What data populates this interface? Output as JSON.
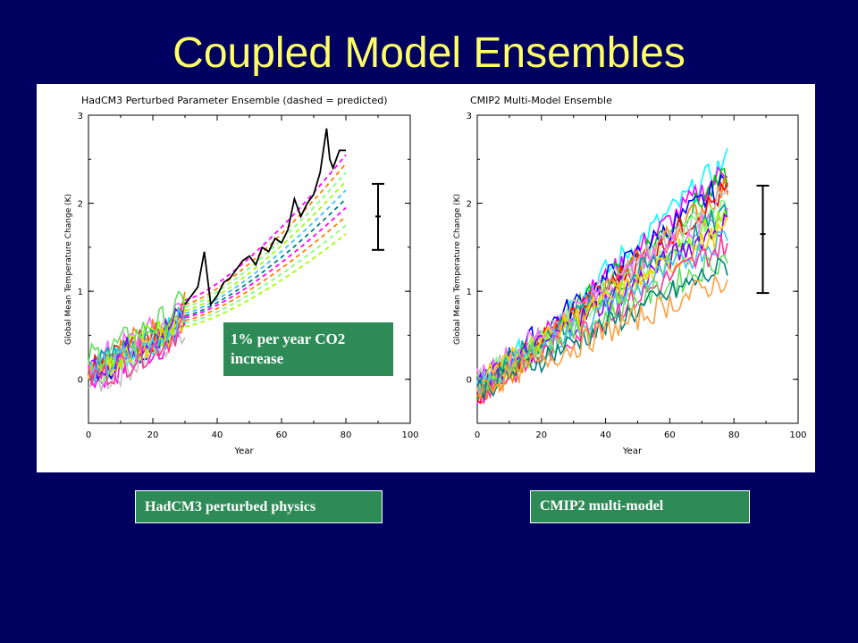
{
  "slide": {
    "title": "Coupled Model Ensembles",
    "callout": "1% per year CO2 increase",
    "caption_left": "HadCM3 perturbed physics",
    "caption_right": "CMIP2 multi-model",
    "text_color": "#ffff66",
    "background": "#000060",
    "box_color": "#2e8b57"
  },
  "chart_data": [
    {
      "type": "line",
      "title": "HadCM3 Perturbed Parameter Ensemble (dashed = predicted)",
      "xlabel": "Year",
      "ylabel": "Global Mean Temperature Change (K)",
      "xlim": [
        0,
        100
      ],
      "ylim": [
        -0.5,
        3.0
      ],
      "xticks": [
        0,
        20,
        40,
        60,
        80,
        100
      ],
      "yticks": [
        0,
        1,
        2,
        3
      ],
      "observed_ensemble": {
        "note": "~16 coloured noisy simulations for years 0-30",
        "x": [
          0,
          5,
          10,
          15,
          20,
          25,
          30
        ],
        "mean": [
          0.1,
          0.15,
          0.25,
          0.35,
          0.45,
          0.55,
          0.75
        ],
        "spread": [
          0.25,
          0.25,
          0.25,
          0.3,
          0.3,
          0.35,
          0.35
        ]
      },
      "black_run": {
        "x": [
          30,
          32,
          34,
          36,
          38,
          40,
          42,
          44,
          46,
          48,
          50,
          52,
          54,
          56,
          58,
          60,
          62,
          64,
          66,
          68,
          70,
          72,
          74,
          75,
          76,
          78,
          80
        ],
        "y": [
          0.85,
          0.95,
          1.05,
          1.45,
          0.85,
          0.95,
          1.1,
          1.15,
          1.25,
          1.35,
          1.4,
          1.3,
          1.5,
          1.45,
          1.6,
          1.55,
          1.7,
          2.05,
          1.85,
          2.0,
          2.1,
          2.35,
          2.85,
          2.5,
          2.4,
          2.6,
          2.6
        ]
      },
      "predicted": {
        "note": "dashed curves, years 30-80",
        "x": [
          30,
          40,
          50,
          60,
          70,
          80
        ],
        "series_end_values": [
          2.55,
          2.45,
          2.35,
          2.25,
          2.15,
          2.05,
          1.95,
          1.85,
          1.75,
          1.65
        ],
        "series_start_values": [
          0.9,
          0.85,
          0.82,
          0.78,
          0.75,
          0.72,
          0.7,
          0.67,
          0.64,
          0.6
        ]
      },
      "error_bar": {
        "x": 90,
        "low": 1.47,
        "mid": 1.85,
        "high": 2.22
      }
    },
    {
      "type": "line",
      "title": "CMIP2 Multi-Model Ensemble",
      "xlabel": "Year",
      "ylabel": "Global Mean Temperature Change (K)",
      "xlim": [
        0,
        100
      ],
      "ylim": [
        -0.5,
        3.0
      ],
      "xticks": [
        0,
        20,
        40,
        60,
        80,
        100
      ],
      "yticks": [
        0,
        1,
        2,
        3
      ],
      "models": {
        "note": "~18 coloured noisy model runs, years 0-78",
        "x": [
          0,
          78
        ],
        "end_values": [
          2.5,
          2.4,
          2.3,
          2.25,
          2.2,
          2.15,
          2.1,
          2.0,
          1.95,
          1.9,
          1.85,
          1.8,
          1.7,
          1.65,
          1.55,
          1.4,
          1.3,
          1.15
        ]
      },
      "error_bar": {
        "x": 89,
        "low": 0.98,
        "mid": 1.65,
        "high": 2.2
      }
    }
  ]
}
